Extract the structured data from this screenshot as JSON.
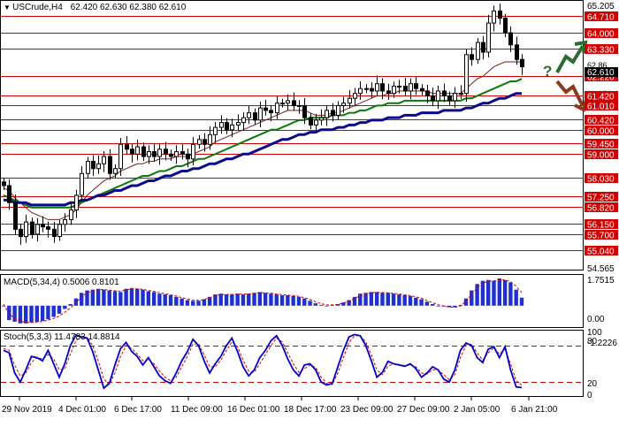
{
  "header": {
    "symbol": "USCrude,H4",
    "ohlc": "62.420 62.630 62.380 62.610"
  },
  "macd_panel": {
    "label": "MACD(5,34,4) 0.5006 0.8101",
    "ticks": [
      "1.7515",
      "0.00",
      "-1.2226"
    ]
  },
  "stoch_panel": {
    "label": "Stoch(5,3,3) 11.4783 14.8814",
    "ticks": [
      "100",
      "80",
      "20",
      "0"
    ],
    "levels": [
      80,
      20
    ]
  },
  "price_axis": {
    "top_label": "65.205",
    "bottom_label": "54.565",
    "current_price": "62.610",
    "unmarked_label": "62.86",
    "faded_labels": [
      "61.670"
    ]
  },
  "levels": [
    {
      "value": 64.71,
      "label": "64.710"
    },
    {
      "value": 64.0,
      "label": "64.000"
    },
    {
      "value": 63.33,
      "label": "63.330"
    },
    {
      "value": 62.22,
      "label": "62.220"
    },
    {
      "value": 61.42,
      "label": "61.420"
    },
    {
      "value": 61.01,
      "label": "61.010"
    },
    {
      "value": 60.42,
      "label": "60.420"
    },
    {
      "value": 60.0,
      "label": "60.000"
    },
    {
      "value": 59.45,
      "label": "59.450"
    },
    {
      "value": 59.0,
      "label": "59.000"
    },
    {
      "value": 58.03,
      "label": "58.030"
    },
    {
      "value": 57.25,
      "label": "57.250"
    },
    {
      "value": 56.82,
      "label": "56.820"
    },
    {
      "value": 56.15,
      "label": "56.150"
    },
    {
      "value": 55.7,
      "label": "55.700"
    },
    {
      "value": 55.04,
      "label": "55.040"
    }
  ],
  "time_axis": [
    "29 Nov 2019",
    "4 Dec 01:00",
    "6 Dec 17:00",
    "11 Dec 09:00",
    "16 Dec 01:00",
    "18 Dec 17:00",
    "23 Dec 09:00",
    "27 Dec 09:00",
    "2 Jan 05:00",
    "6 Jan 21:00"
  ],
  "annotation": {
    "text": "?",
    "arrows": [
      "arrow-up-icon",
      "arrow-down-icon"
    ]
  },
  "colors": {
    "level_line": "#d40000",
    "label_bg": "#d40000",
    "candle": "#000000",
    "ma_fast": "#7a1b1b",
    "ma_mid": "#0a7a0a",
    "ma_slow": "#0a0a8c",
    "macd_hist": "#1f2fd0",
    "signal": "#d40000",
    "stoch_main": "#0000cc",
    "arrow_up": "#2e6b2e",
    "arrow_down": "#8b3a1a"
  },
  "chart_data": [
    {
      "type": "candlestick",
      "title": "USCrude,H4",
      "ylim": [
        54.565,
        65.205
      ],
      "x_tick_labels": [
        "29 Nov 2019",
        "4 Dec 01:00",
        "6 Dec 17:00",
        "11 Dec 09:00",
        "16 Dec 01:00",
        "18 Dec 17:00",
        "23 Dec 09:00",
        "27 Dec 09:00",
        "2 Jan 05:00",
        "6 Jan 21:00"
      ],
      "close_path": [
        57.7,
        57.0,
        55.9,
        55.6,
        56.2,
        55.7,
        56.1,
        56.0,
        55.9,
        55.6,
        56.1,
        56.3,
        56.7,
        57.3,
        58.2,
        58.7,
        58.4,
        58.6,
        58.9,
        58.2,
        58.4,
        59.4,
        59.2,
        59.0,
        59.3,
        58.9,
        59.1,
        58.9,
        59.2,
        59.0,
        58.9,
        59.1,
        59.0,
        58.8,
        59.4,
        59.6,
        59.4,
        59.8,
        60.1,
        60.3,
        60.0,
        60.2,
        60.3,
        60.5,
        60.7,
        60.4,
        60.9,
        60.8,
        60.7,
        61.1,
        61.1,
        61.2,
        61.0,
        61.0,
        60.5,
        60.2,
        60.4,
        60.5,
        60.8,
        60.6,
        61.0,
        61.1,
        61.3,
        61.5,
        61.7,
        61.7,
        61.6,
        61.9,
        61.6,
        61.5,
        61.8,
        61.8,
        61.6,
        61.9,
        61.7,
        61.6,
        61.4,
        61.2,
        61.6,
        61.4,
        61.2,
        61.5,
        61.5,
        63.1,
        62.9,
        63.6,
        63.2,
        64.4,
        64.9,
        64.6,
        64.0,
        63.5,
        62.9,
        62.6
      ],
      "series": [
        {
          "name": "MA fast",
          "values": [
            57.6,
            57.5,
            57.2,
            57.0,
            56.8,
            56.6,
            56.5,
            56.4,
            56.3,
            56.3,
            56.3,
            56.4,
            56.5,
            56.7,
            57.0,
            57.3,
            57.5,
            57.7,
            57.9,
            58.0,
            58.1,
            58.3,
            58.4,
            58.5,
            58.6,
            58.6,
            58.7,
            58.7,
            58.8,
            58.8,
            58.8,
            58.9,
            58.9,
            58.9,
            59.0,
            59.1,
            59.2,
            59.3,
            59.5,
            59.6,
            59.7,
            59.8,
            59.9,
            60.0,
            60.1,
            60.2,
            60.3,
            60.4,
            60.5,
            60.6,
            60.7,
            60.8,
            60.8,
            60.8,
            60.8,
            60.7,
            60.6,
            60.6,
            60.6,
            60.7,
            60.7,
            60.8,
            60.9,
            61.0,
            61.1,
            61.2,
            61.3,
            61.4,
            61.4,
            61.5,
            61.5,
            61.6,
            61.6,
            61.6,
            61.6,
            61.6,
            61.6,
            61.5,
            61.5,
            61.5,
            61.5,
            61.5,
            61.5,
            61.7,
            61.9,
            62.1,
            62.2,
            62.4,
            62.6,
            62.7,
            62.8,
            62.8,
            62.8,
            62.8
          ]
        },
        {
          "name": "MA mid",
          "values": [
            57.3,
            57.2,
            57.1,
            57.0,
            56.9,
            56.8,
            56.8,
            56.8,
            56.8,
            56.8,
            56.8,
            56.8,
            56.8,
            56.9,
            57.0,
            57.1,
            57.2,
            57.3,
            57.4,
            57.5,
            57.6,
            57.7,
            57.8,
            57.9,
            58.0,
            58.1,
            58.1,
            58.2,
            58.3,
            58.3,
            58.4,
            58.5,
            58.5,
            58.6,
            58.7,
            58.8,
            58.8,
            58.9,
            59.0,
            59.1,
            59.2,
            59.3,
            59.4,
            59.5,
            59.6,
            59.7,
            59.8,
            59.9,
            60.0,
            60.0,
            60.1,
            60.2,
            60.3,
            60.4,
            60.4,
            60.5,
            60.5,
            60.5,
            60.5,
            60.6,
            60.6,
            60.6,
            60.7,
            60.7,
            60.8,
            60.8,
            60.9,
            61.0,
            61.0,
            61.1,
            61.1,
            61.1,
            61.2,
            61.2,
            61.2,
            61.2,
            61.2,
            61.2,
            61.2,
            61.2,
            61.2,
            61.2,
            61.2,
            61.3,
            61.3,
            61.4,
            61.5,
            61.6,
            61.7,
            61.8,
            61.9,
            62.0,
            62.0,
            62.1
          ]
        },
        {
          "name": "MA slow",
          "values": [
            57.1,
            57.1,
            57.0,
            57.0,
            57.0,
            56.9,
            56.9,
            56.9,
            56.9,
            56.9,
            56.9,
            56.9,
            57.0,
            57.0,
            57.1,
            57.1,
            57.2,
            57.3,
            57.3,
            57.4,
            57.5,
            57.5,
            57.6,
            57.7,
            57.7,
            57.8,
            57.9,
            57.9,
            58.0,
            58.1,
            58.1,
            58.2,
            58.3,
            58.3,
            58.4,
            58.4,
            58.5,
            58.6,
            58.6,
            58.7,
            58.8,
            58.8,
            58.9,
            59.0,
            59.0,
            59.1,
            59.2,
            59.3,
            59.4,
            59.5,
            59.6,
            59.6,
            59.7,
            59.8,
            59.8,
            59.9,
            59.9,
            60.0,
            60.0,
            60.0,
            60.1,
            60.1,
            60.2,
            60.2,
            60.3,
            60.3,
            60.4,
            60.4,
            60.4,
            60.5,
            60.5,
            60.5,
            60.6,
            60.6,
            60.6,
            60.7,
            60.7,
            60.7,
            60.7,
            60.8,
            60.8,
            60.8,
            60.8,
            60.9,
            60.9,
            61.0,
            61.1,
            61.1,
            61.2,
            61.3,
            61.3,
            61.4,
            61.5,
            61.5
          ]
        }
      ],
      "levels": [
        64.71,
        64.0,
        63.33,
        62.22,
        61.42,
        61.01,
        60.42,
        60.0,
        59.45,
        59.0,
        58.03,
        57.25,
        56.82,
        56.15,
        55.7,
        55.04
      ],
      "current": 62.61,
      "grid": false
    },
    {
      "type": "bar",
      "title": "MACD(5,34,4) 0.5006 0.8101",
      "ylim": [
        -1.2226,
        1.7515
      ],
      "values": [
        0.0,
        -0.9,
        -1.0,
        -1.1,
        -1.1,
        -1.05,
        -1.0,
        -0.95,
        -0.85,
        -0.7,
        -0.5,
        -0.2,
        0.1,
        0.45,
        0.8,
        0.95,
        1.0,
        1.05,
        1.0,
        0.95,
        0.9,
        0.85,
        1.05,
        1.1,
        1.05,
        1.0,
        0.9,
        0.85,
        0.75,
        0.7,
        0.65,
        0.55,
        0.45,
        0.35,
        0.3,
        0.3,
        0.4,
        0.55,
        0.7,
        0.75,
        0.7,
        0.7,
        0.75,
        0.7,
        0.75,
        0.8,
        0.85,
        0.8,
        0.75,
        0.7,
        0.65,
        0.65,
        0.6,
        0.55,
        0.45,
        0.3,
        0.15,
        0.05,
        0.0,
        0.05,
        0.1,
        0.2,
        0.35,
        0.55,
        0.75,
        0.8,
        0.85,
        0.85,
        0.8,
        0.8,
        0.75,
        0.7,
        0.65,
        0.6,
        0.5,
        0.4,
        0.25,
        0.1,
        0.0,
        -0.05,
        -0.1,
        -0.1,
        0.05,
        0.45,
        0.95,
        1.35,
        1.55,
        1.6,
        1.55,
        1.7,
        1.6,
        1.45,
        1.0,
        0.5
      ],
      "signal": [
        0.1,
        -0.5,
        -0.8,
        -0.95,
        -1.05,
        -1.05,
        -1.02,
        -0.98,
        -0.9,
        -0.8,
        -0.65,
        -0.4,
        -0.15,
        0.2,
        0.55,
        0.8,
        0.92,
        1.0,
        1.0,
        0.97,
        0.93,
        0.9,
        0.98,
        1.05,
        1.05,
        1.02,
        0.95,
        0.9,
        0.8,
        0.75,
        0.68,
        0.6,
        0.5,
        0.42,
        0.35,
        0.33,
        0.38,
        0.5,
        0.62,
        0.7,
        0.7,
        0.7,
        0.72,
        0.72,
        0.73,
        0.77,
        0.81,
        0.8,
        0.78,
        0.73,
        0.69,
        0.66,
        0.62,
        0.58,
        0.5,
        0.38,
        0.25,
        0.12,
        0.05,
        0.05,
        0.08,
        0.16,
        0.28,
        0.45,
        0.62,
        0.72,
        0.8,
        0.83,
        0.82,
        0.8,
        0.77,
        0.73,
        0.68,
        0.63,
        0.55,
        0.46,
        0.32,
        0.18,
        0.06,
        -0.02,
        -0.08,
        -0.1,
        -0.02,
        0.3,
        0.7,
        1.1,
        1.4,
        1.52,
        1.55,
        1.62,
        1.6,
        1.5,
        1.2,
        0.81
      ]
    },
    {
      "type": "line",
      "title": "Stoch(5,3,3) 11.4783 14.8814",
      "ylim": [
        0,
        100
      ],
      "series": [
        {
          "name": "main",
          "values": [
            72,
            68,
            35,
            20,
            40,
            62,
            60,
            55,
            72,
            50,
            28,
            50,
            80,
            97,
            94,
            92,
            70,
            40,
            10,
            18,
            48,
            75,
            85,
            70,
            62,
            48,
            60,
            45,
            30,
            22,
            18,
            35,
            55,
            70,
            90,
            80,
            55,
            35,
            50,
            62,
            80,
            92,
            70,
            45,
            30,
            40,
            60,
            72,
            88,
            96,
            80,
            58,
            40,
            30,
            48,
            50,
            40,
            20,
            15,
            18,
            45,
            72,
            94,
            98,
            96,
            80,
            55,
            28,
            36,
            54,
            50,
            48,
            46,
            50,
            42,
            28,
            35,
            45,
            40,
            25,
            20,
            40,
            72,
            84,
            80,
            60,
            52,
            74,
            78,
            60,
            78,
            40,
            12,
            11
          ]
        },
        {
          "name": "signal",
          "values": [
            75,
            72,
            48,
            30,
            35,
            52,
            60,
            58,
            65,
            58,
            40,
            42,
            66,
            88,
            94,
            93,
            80,
            55,
            25,
            16,
            35,
            62,
            80,
            75,
            66,
            55,
            57,
            50,
            38,
            28,
            22,
            28,
            45,
            62,
            82,
            83,
            65,
            45,
            45,
            56,
            72,
            86,
            78,
            56,
            38,
            36,
            50,
            65,
            80,
            92,
            86,
            68,
            50,
            36,
            42,
            48,
            44,
            28,
            18,
            16,
            35,
            60,
            85,
            96,
            96,
            86,
            65,
            40,
            32,
            46,
            50,
            49,
            47,
            48,
            45,
            35,
            33,
            40,
            40,
            32,
            24,
            32,
            60,
            80,
            82,
            68,
            56,
            68,
            76,
            66,
            74,
            50,
            22,
            15
          ]
        }
      ],
      "levels": [
        80,
        20
      ]
    }
  ]
}
